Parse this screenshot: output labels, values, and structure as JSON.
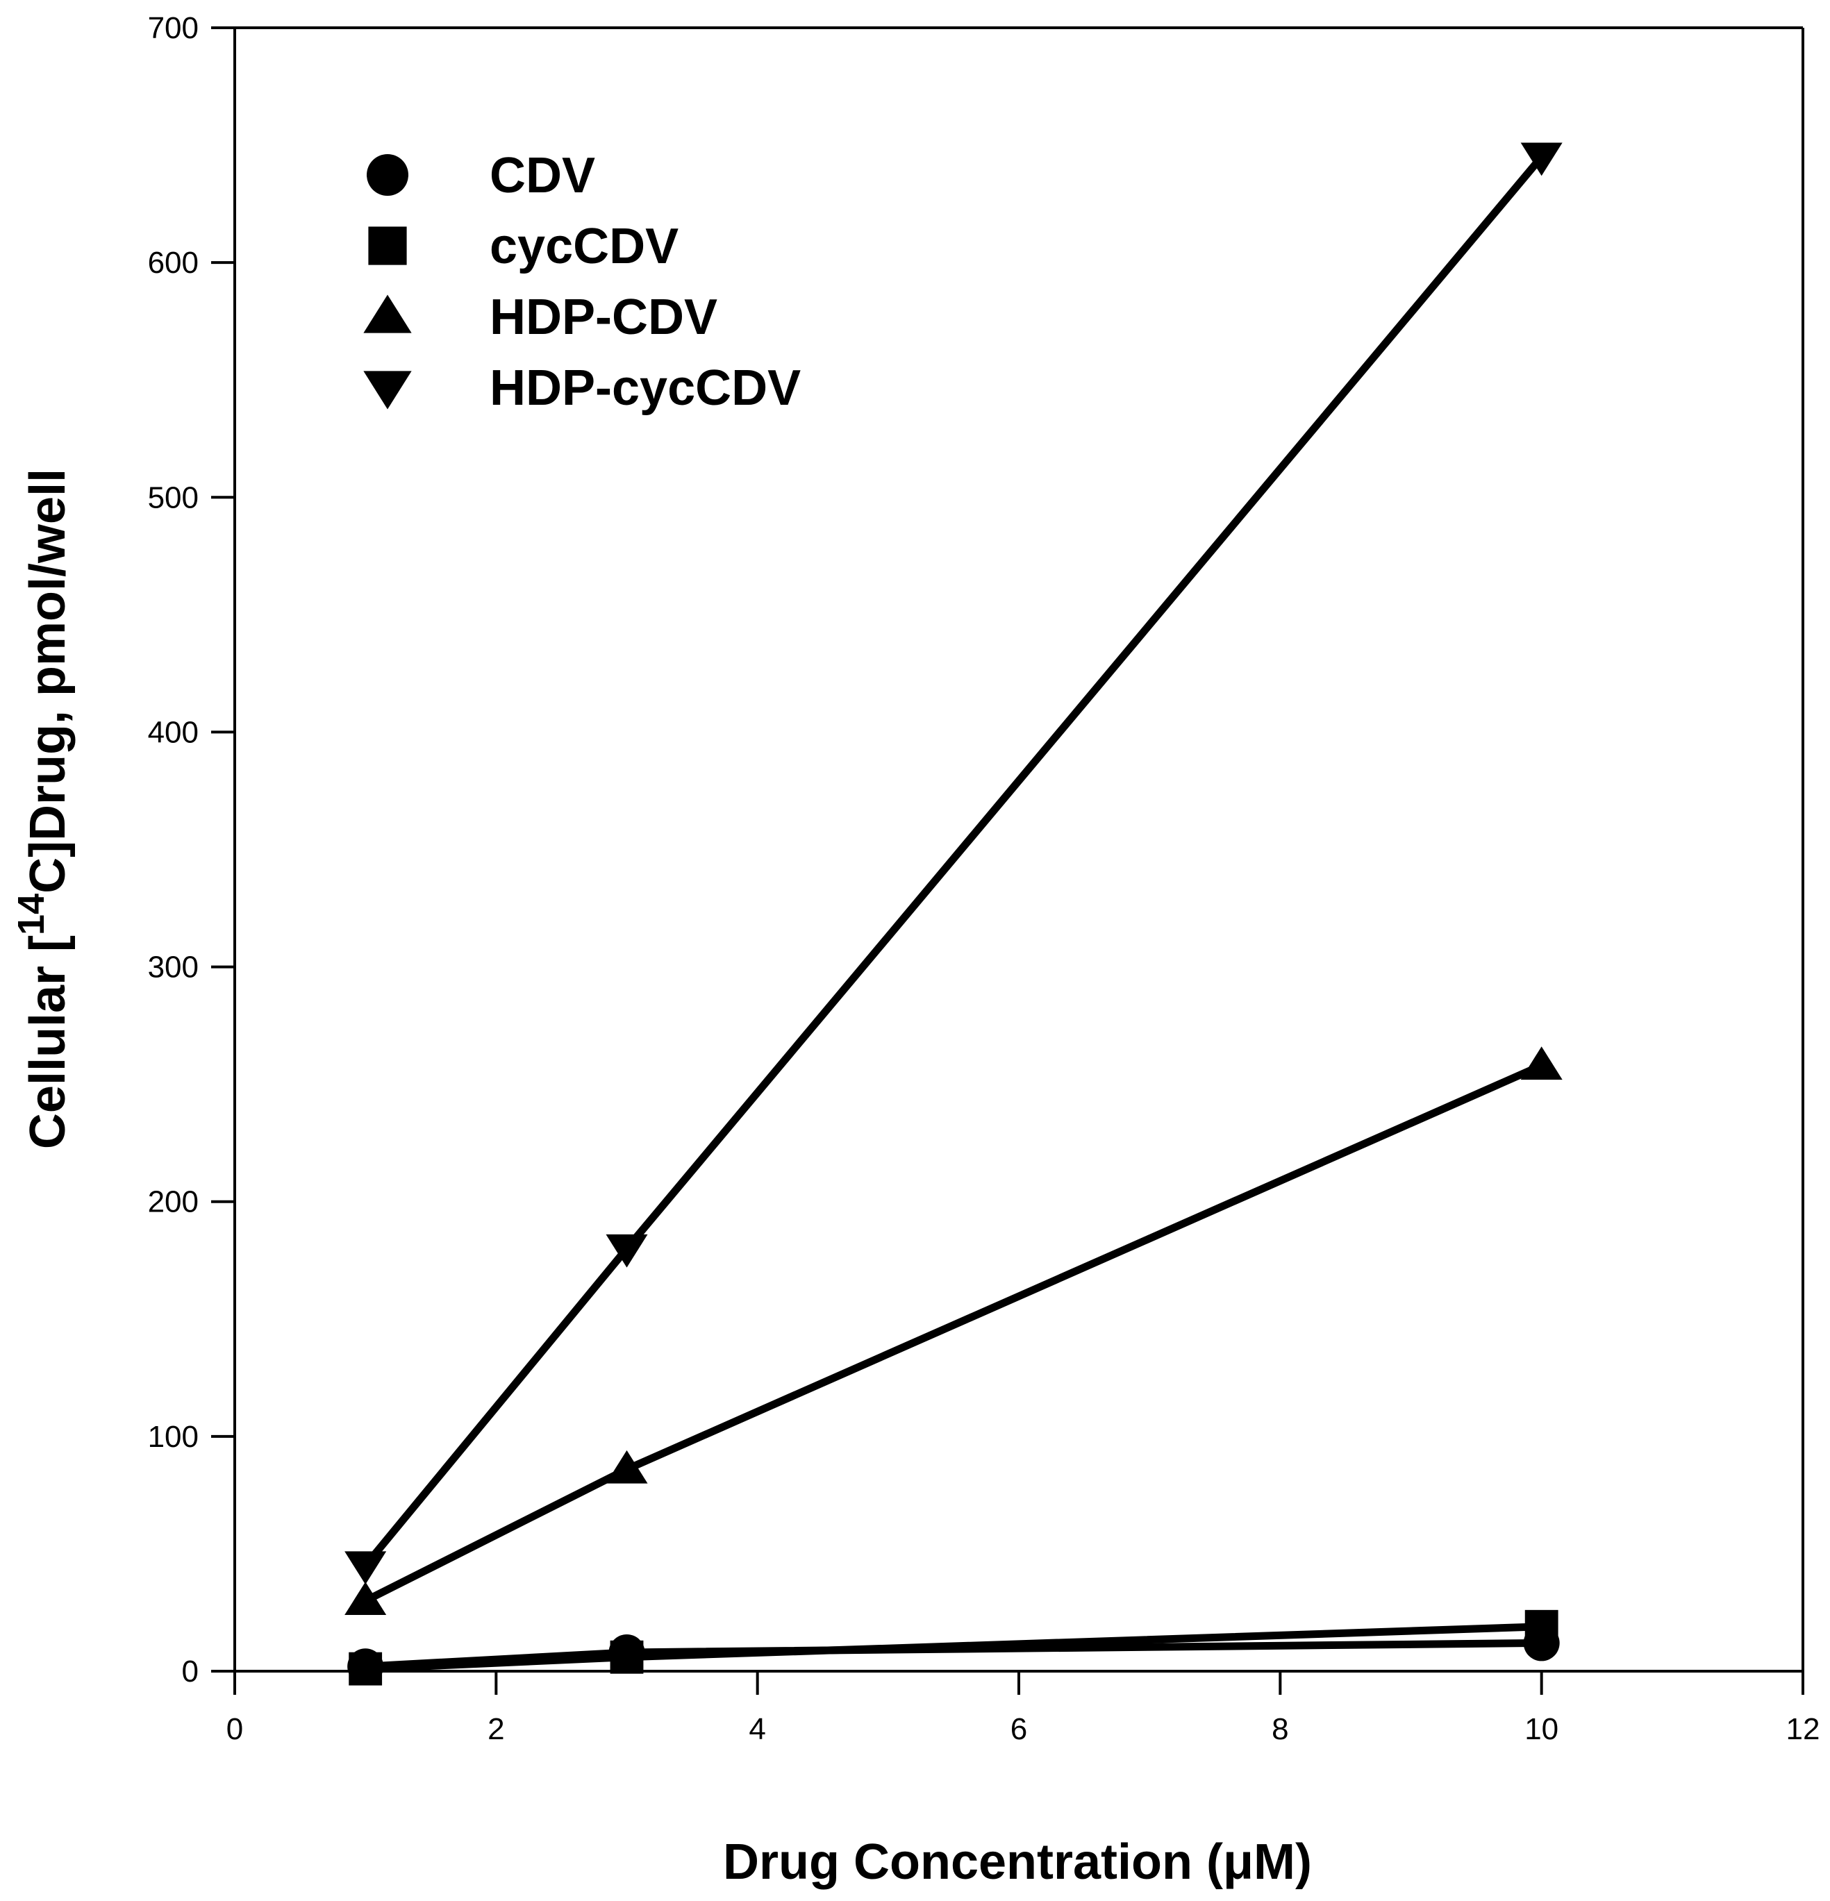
{
  "chart_data": {
    "type": "line",
    "title": "",
    "xlabel": "Drug Concentration (μM)",
    "ylabel_prefix": "Cellular [",
    "ylabel_sup": "14",
    "ylabel_suffix": "C]Drug, pmol/well",
    "xlim": [
      0,
      12
    ],
    "ylim": [
      0,
      700
    ],
    "xticks": [
      0,
      2,
      4,
      6,
      8,
      10,
      12
    ],
    "yticks": [
      0,
      100,
      200,
      300,
      400,
      500,
      600,
      700
    ],
    "grid": false,
    "legend_position": "top-left",
    "x": [
      1,
      3,
      10
    ],
    "series": [
      {
        "name": "CDV",
        "marker": "circle",
        "values": [
          2,
          8,
          12
        ]
      },
      {
        "name": "cycCDV",
        "marker": "square",
        "values": [
          1,
          6,
          19
        ]
      },
      {
        "name": "HDP-CDV",
        "marker": "triangle-up",
        "values": [
          30,
          86,
          258
        ]
      },
      {
        "name": "HDP-cycCDV",
        "marker": "triangle-down",
        "values": [
          45,
          180,
          645
        ]
      }
    ],
    "colors": {
      "line": "#000000",
      "marker": "#000000",
      "background": "#ffffff"
    }
  }
}
